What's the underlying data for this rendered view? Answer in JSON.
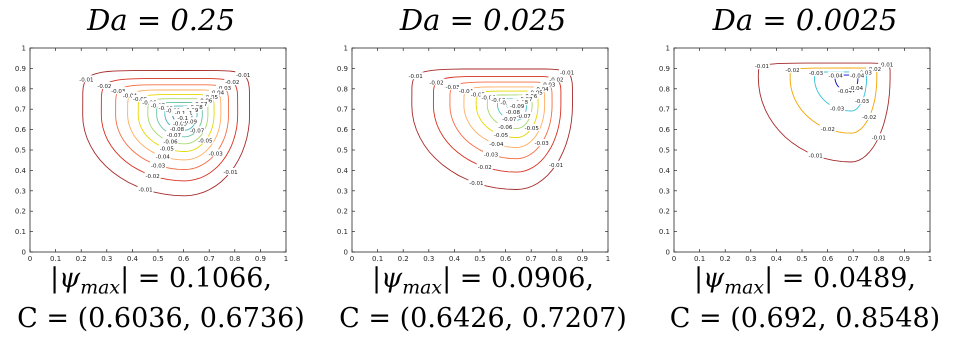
{
  "chart_data": [
    {
      "type": "contour",
      "title": "Da = 0.25",
      "xlim": [
        0,
        1
      ],
      "ylim": [
        0,
        1
      ],
      "xticks": [
        "0",
        "0.1",
        "0.2",
        "0.3",
        "0.4",
        "0.5",
        "0.6",
        "0.7",
        "0.8",
        "0.9",
        "1"
      ],
      "yticks": [
        "0",
        "0.1",
        "0.2",
        "0.3",
        "0.4",
        "0.5",
        "0.6",
        "0.7",
        "0.8",
        "0.9",
        "1"
      ],
      "center": [
        0.6036,
        0.6736
      ],
      "psi_max_abs": 0.1066,
      "levels": [
        {
          "value": -0.01,
          "label": "-0.01",
          "color": "#a52a2a"
        },
        {
          "value": -0.02,
          "label": "-0.02",
          "color": "#d7301f"
        },
        {
          "value": -0.03,
          "label": "-0.03",
          "color": "#f46d43"
        },
        {
          "value": -0.04,
          "label": "-0.04",
          "color": "#fdae61"
        },
        {
          "value": -0.05,
          "label": "-0.05",
          "color": "#e6d800"
        },
        {
          "value": -0.06,
          "label": "-0.06",
          "color": "#a6d96a"
        },
        {
          "value": -0.07,
          "label": "-0.07",
          "color": "#66c2a5"
        },
        {
          "value": -0.08,
          "label": "-0.08",
          "color": "#41b6c4"
        },
        {
          "value": -0.09,
          "label": "-0.09",
          "color": "#2c7bb6"
        },
        {
          "value": -0.1,
          "label": "-0.1",
          "color": "#0000cd"
        }
      ],
      "caption_psi": "|ψmax| = 0.1066,",
      "caption_center": "C = (0.6036, 0.6736)"
    },
    {
      "type": "contour",
      "title": "Da = 0.025",
      "xlim": [
        0,
        1
      ],
      "ylim": [
        0,
        1
      ],
      "xticks": [
        "0",
        "0.1",
        "0.2",
        "0.3",
        "0.4",
        "0.5",
        "0.6",
        "0.7",
        "0.8",
        "0.9",
        "1"
      ],
      "yticks": [
        "0",
        "0.1",
        "0.2",
        "0.3",
        "0.4",
        "0.5",
        "0.6",
        "0.7",
        "0.8",
        "0.9",
        "1"
      ],
      "center": [
        0.6426,
        0.7207
      ],
      "psi_max_abs": 0.0906,
      "levels": [
        {
          "value": -0.01,
          "label": "-0.01",
          "color": "#a52a2a"
        },
        {
          "value": -0.02,
          "label": "-0.02",
          "color": "#d7301f"
        },
        {
          "value": -0.03,
          "label": "-0.03",
          "color": "#f46d43"
        },
        {
          "value": -0.04,
          "label": "-0.04",
          "color": "#fdae61"
        },
        {
          "value": -0.05,
          "label": "-0.05",
          "color": "#e6d800"
        },
        {
          "value": -0.06,
          "label": "-0.06",
          "color": "#a6d96a"
        },
        {
          "value": -0.07,
          "label": "-0.07",
          "color": "#4ec3c8"
        },
        {
          "value": -0.08,
          "label": "-0.08",
          "color": "#2c7bb6"
        },
        {
          "value": -0.09,
          "label": "-0.09",
          "color": "#0000cd"
        }
      ],
      "caption_psi": "|ψmax| = 0.0906,",
      "caption_center": "C = (0.6426, 0.7207)"
    },
    {
      "type": "contour",
      "title": "Da = 0.0025",
      "xlim": [
        0,
        1
      ],
      "ylim": [
        0,
        1
      ],
      "xticks": [
        "0",
        "0.1",
        "0.2",
        "0.3",
        "0.4",
        "0.5",
        "0.6",
        "0.7",
        "0.8",
        "0.9",
        "1"
      ],
      "yticks": [
        "0",
        "0.1",
        "0.2",
        "0.3",
        "0.4",
        "0.5",
        "0.6",
        "0.7",
        "0.8",
        "0.9",
        "1"
      ],
      "center": [
        0.692,
        0.8548
      ],
      "psi_max_abs": 0.0489,
      "levels": [
        {
          "value": -0.01,
          "label": "-0.01",
          "color": "#a52a2a"
        },
        {
          "value": -0.02,
          "label": "-0.02",
          "color": "#f4a300"
        },
        {
          "value": -0.03,
          "label": "-0.03",
          "color": "#33c3d4"
        },
        {
          "value": -0.04,
          "label": "-0.04",
          "color": "#0000cd"
        }
      ],
      "caption_psi": "|ψmax| = 0.0489,",
      "caption_center": "C = (0.692, 0.8548)"
    }
  ]
}
